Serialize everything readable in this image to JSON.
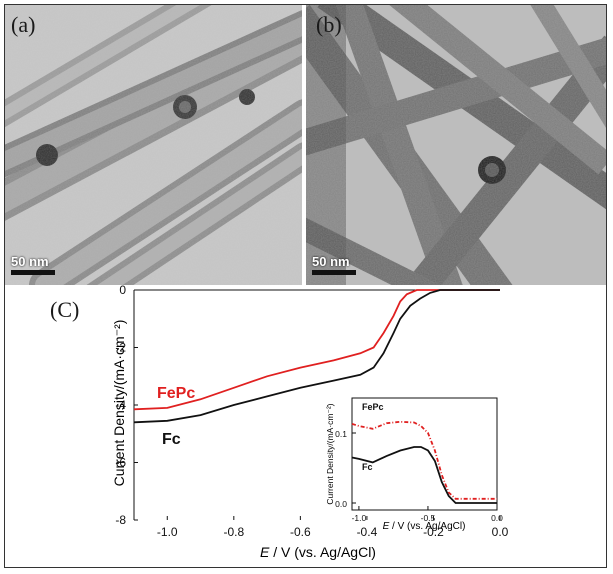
{
  "panels": {
    "a": {
      "label": "(a)",
      "scale": "50 nm"
    },
    "b": {
      "label": "(b)",
      "scale": "50 nm"
    },
    "c": {
      "label": "(C)"
    }
  },
  "colors": {
    "fepc": "#e02020",
    "fc": "#111111"
  },
  "chart_data": [
    {
      "type": "line",
      "title": "",
      "xlabel": "E / V (vs. Ag/AgCl)",
      "ylabel": "Current Density/(mA·cm⁻²)",
      "xlim": [
        -1.1,
        0.0
      ],
      "ylim": [
        -8,
        0
      ],
      "xticks": [
        "-1.0",
        "-0.8",
        "-0.6",
        "-0.4",
        "-0.2",
        "0.0"
      ],
      "yticks": [
        "0",
        "-2",
        "-4",
        "-6",
        "-8"
      ],
      "series": [
        {
          "name": "FePc",
          "color": "#e02020",
          "x": [
            -1.1,
            -1.0,
            -0.9,
            -0.8,
            -0.7,
            -0.6,
            -0.5,
            -0.42,
            -0.38,
            -0.35,
            -0.32,
            -0.3,
            -0.28,
            -0.25,
            -0.22,
            -0.2,
            -0.15,
            -0.1,
            0.0
          ],
          "y": [
            -4.15,
            -4.1,
            -3.8,
            -3.4,
            -3.0,
            -2.7,
            -2.45,
            -2.2,
            -2.0,
            -1.5,
            -0.9,
            -0.4,
            -0.15,
            0.0,
            0.0,
            0.0,
            0.0,
            0.0,
            0.0
          ]
        },
        {
          "name": "Fc",
          "color": "#111111",
          "x": [
            -1.1,
            -1.0,
            -0.9,
            -0.8,
            -0.7,
            -0.6,
            -0.5,
            -0.42,
            -0.38,
            -0.35,
            -0.32,
            -0.3,
            -0.27,
            -0.24,
            -0.21,
            -0.18,
            -0.15,
            -0.1,
            0.0
          ],
          "y": [
            -4.6,
            -4.55,
            -4.35,
            -4.0,
            -3.7,
            -3.4,
            -3.15,
            -2.95,
            -2.7,
            -2.2,
            -1.5,
            -1.0,
            -0.55,
            -0.3,
            -0.1,
            0.0,
            0.0,
            0.0,
            0.0
          ]
        }
      ]
    },
    {
      "type": "line",
      "title": "",
      "xlabel": "E / V (vs. Ag/AgCl)",
      "ylabel": "Current Density/(mA·cm⁻²)",
      "xlim": [
        -1.05,
        0.0
      ],
      "ylim": [
        -0.01,
        0.15
      ],
      "xticks": [
        "-1.0",
        "-0.5",
        "0.0"
      ],
      "yticks": [
        "0.0",
        "0.1"
      ],
      "series": [
        {
          "name": "FePc",
          "color": "#e02020",
          "x": [
            -1.05,
            -1.0,
            -0.9,
            -0.8,
            -0.7,
            -0.6,
            -0.55,
            -0.5,
            -0.45,
            -0.4,
            -0.35,
            -0.3,
            -0.2,
            -0.1,
            0.0
          ],
          "y": [
            0.113,
            0.11,
            0.106,
            0.114,
            0.116,
            0.115,
            0.11,
            0.1,
            0.075,
            0.04,
            0.015,
            0.006,
            0.006,
            0.006,
            0.006
          ]
        },
        {
          "name": "Fc",
          "color": "#111111",
          "x": [
            -1.05,
            -1.0,
            -0.9,
            -0.8,
            -0.7,
            -0.6,
            -0.55,
            -0.5,
            -0.45,
            -0.4,
            -0.35,
            -0.3,
            -0.2,
            -0.1,
            0.0
          ],
          "y": [
            0.065,
            0.063,
            0.058,
            0.067,
            0.075,
            0.08,
            0.08,
            0.075,
            0.06,
            0.03,
            0.01,
            0.0,
            0.0,
            0.0,
            0.0
          ]
        }
      ]
    }
  ]
}
